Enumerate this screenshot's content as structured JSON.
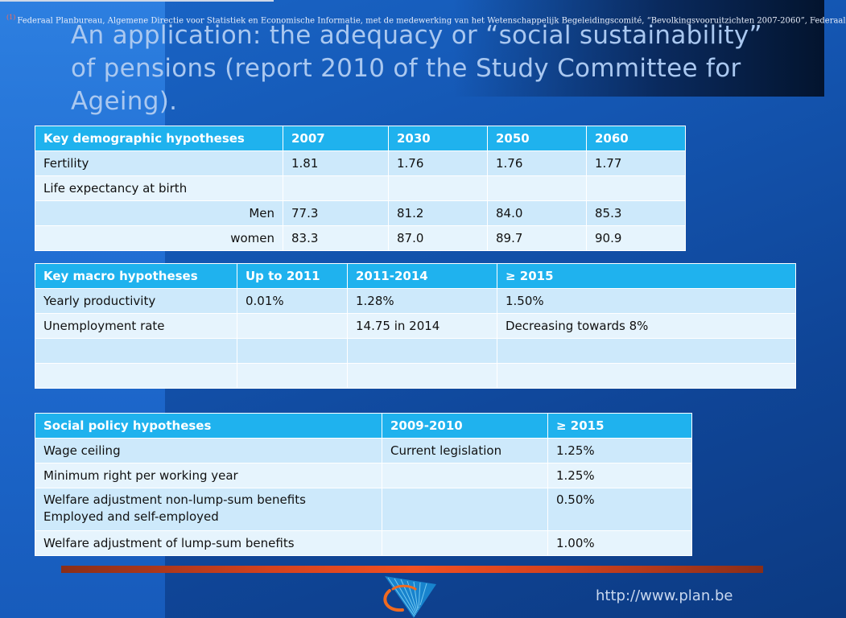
{
  "footnote": "Federaal Planbureau, Algemene Directie voor Statistiek en Economische Informatie, met de medewerking van het Wetenschappelijk Begeleidingscomité, “Bevolkingsvooruitzichten 2007-2060”, Federaal",
  "title": "An application: the adequacy or “social sustainability” of pensions (report 2010 of the Study Committee for Ageing).",
  "demographic": {
    "headers": [
      "Key demographic hypotheses",
      "2007",
      "2030",
      "2050",
      "2060"
    ],
    "rows": [
      [
        "Fertility",
        "1.81",
        "1.76",
        "1.76",
        "1.77"
      ],
      [
        "Life expectancy at birth",
        "",
        "",
        "",
        ""
      ],
      [
        "Men",
        "77.3",
        "81.2",
        "84.0",
        "85.3"
      ],
      [
        "women",
        "83.3",
        "87.0",
        "89.7",
        "90.9"
      ]
    ]
  },
  "macro": {
    "headers": [
      "Key macro hypotheses",
      "Up to 2011",
      "2011-2014",
      "≥ 2015"
    ],
    "rows": [
      [
        "Yearly productivity",
        "0.01%",
        "1.28%",
        "1.50%"
      ],
      [
        "Unemployment rate",
        "",
        "14.75 in 2014",
        "Decreasing towards 8%"
      ],
      [
        "",
        "",
        "",
        ""
      ],
      [
        "",
        "",
        "",
        ""
      ]
    ]
  },
  "social": {
    "headers": [
      "Social policy hypotheses",
      "2009-2010",
      "≥ 2015"
    ],
    "rows": [
      [
        "Wage ceiling",
        "Current legislation",
        "1.25%"
      ],
      [
        "Minimum right per working year",
        "",
        "1.25%"
      ],
      [
        "Welfare adjustment non-lump-sum benefits",
        "",
        "0.50%"
      ],
      [
        "Welfare adjustment of lump-sum benefits",
        "",
        "1.00%"
      ]
    ],
    "row3_line2": "Employed and self-employed"
  },
  "url": "http://www.plan.be"
}
